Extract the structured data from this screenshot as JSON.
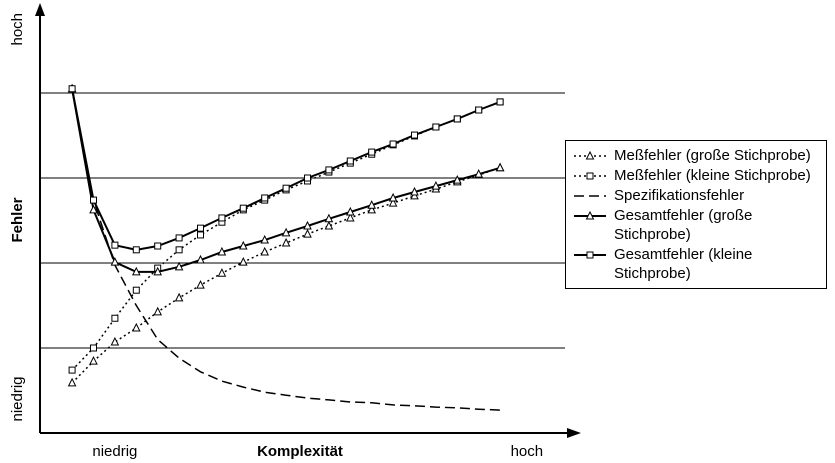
{
  "chart_data": {
    "type": "line",
    "xlabel": "Komplexität",
    "ylabel": "Fehler",
    "xlim": [
      0,
      100
    ],
    "ylim": [
      0,
      100
    ],
    "xticks": [
      {
        "value": 14,
        "label": "niedrig"
      },
      {
        "value": 91,
        "label": "hoch"
      }
    ],
    "yticks": [
      {
        "value": 8,
        "label": "niedrig"
      },
      {
        "value": 95,
        "label": "hoch"
      }
    ],
    "grid_y": [
      20,
      40,
      60,
      80
    ],
    "x": [
      6,
      10,
      14,
      18,
      22,
      26,
      30,
      34,
      38,
      42,
      46,
      50,
      54,
      58,
      62,
      66,
      70,
      74,
      78,
      82,
      86
    ],
    "series": [
      {
        "name": "Meßfehler (große Stichprobe)",
        "color": "#000000",
        "dash": "dotted",
        "marker": "triangle",
        "values": [
          11.8,
          16.9,
          21.4,
          24.7,
          28.5,
          31.8,
          34.8,
          37.6,
          40.2,
          42.6,
          44.7,
          46.8,
          48.7,
          50.6,
          52.5,
          54.1,
          55.8,
          57.4,
          59.1,
          60.7,
          62.4
        ]
      },
      {
        "name": "Meßfehler (kleine Stichprobe)",
        "color": "#000000",
        "dash": "dotted",
        "marker": "square",
        "values": [
          14.8,
          20,
          27,
          33.6,
          38.8,
          43.1,
          46.6,
          49.6,
          52.5,
          54.8,
          57.2,
          59.3,
          61.4,
          63.5,
          65.6,
          67.8,
          69.9,
          72,
          73.9,
          76,
          77.9
        ]
      },
      {
        "name": "Spezifikationsfehler",
        "color": "#000000",
        "dash": "dashed",
        "marker": "none",
        "values": [
          81,
          54.8,
          39.5,
          30,
          22,
          17.6,
          14.4,
          12.2,
          10.8,
          9.6,
          8.9,
          8.2,
          7.8,
          7.3,
          7.1,
          6.6,
          6.4,
          6.1,
          5.9,
          5.6,
          5.4
        ]
      },
      {
        "name": "Gesamtfehler (große Stichprobe)",
        "color": "#000000",
        "dash": "solid",
        "marker": "triangle",
        "values": [
          81,
          52.5,
          40.2,
          37.9,
          37.9,
          39.1,
          40.7,
          42.6,
          44,
          45.4,
          47.1,
          48.7,
          50.4,
          52,
          53.6,
          55.3,
          56.7,
          58.1,
          59.5,
          60.9,
          62.4
        ]
      },
      {
        "name": "Gesamtfehler (kleine Stichprobe)",
        "color": "#000000",
        "dash": "solid",
        "marker": "square",
        "values": [
          81,
          54.8,
          44.2,
          43.1,
          44,
          45.9,
          48.2,
          50.6,
          52.9,
          55.3,
          57.6,
          60,
          61.9,
          64,
          66.1,
          68,
          70.1,
          72,
          73.9,
          76,
          77.9
        ]
      }
    ]
  }
}
